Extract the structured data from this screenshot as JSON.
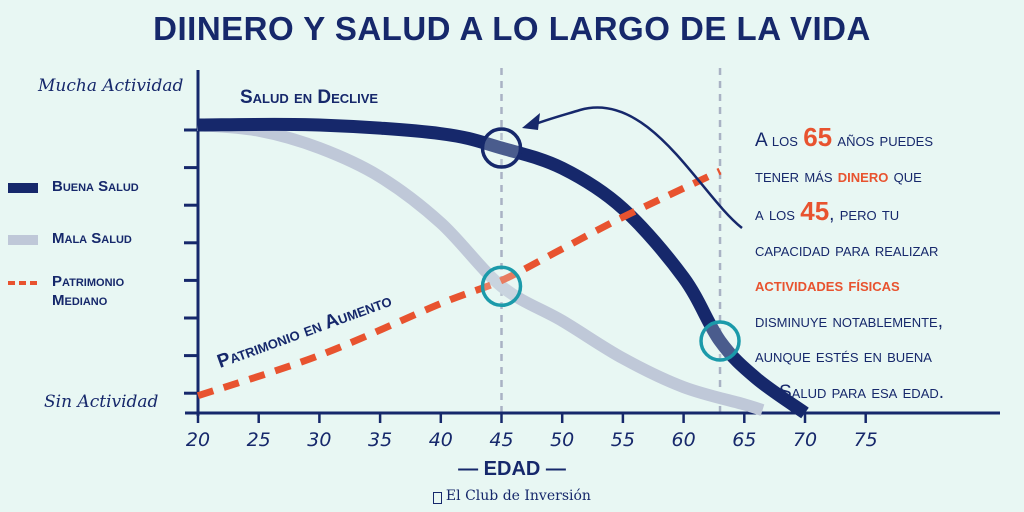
{
  "title": "DIINERO Y SALUD A LO LARGO DE LA VIDA",
  "colors": {
    "background": "#e8f7f3",
    "navy": "#16286b",
    "orange": "#e8532f",
    "grey": "#bfc8d8",
    "teal": "#1b9aaa",
    "guide": "#a9b2c4"
  },
  "chart_data": {
    "type": "line",
    "title": "DIINERO Y SALUD A LO LARGO DE LA VIDA",
    "xlabel": "EDAD",
    "ylabel_top": "Mucha Actividad",
    "ylabel_bottom": "Sin Actividad",
    "xlim": [
      20,
      75
    ],
    "xticks": [
      20,
      25,
      30,
      35,
      40,
      45,
      50,
      55,
      60,
      65,
      70,
      75
    ],
    "ylim": [
      0,
      100
    ],
    "grid": false,
    "legend_position": "left",
    "reference_lines_x": [
      45,
      63
    ],
    "series": [
      {
        "name": "Buena Salud",
        "style": "solid-thick",
        "color": "#16286b",
        "x": [
          20,
          30,
          40,
          45,
          50,
          55,
          60,
          63,
          66,
          70
        ],
        "y": [
          100,
          100,
          97,
          92,
          85,
          71,
          47,
          25,
          12,
          0
        ]
      },
      {
        "name": "Mala Salud",
        "style": "solid",
        "color": "#bfc8d8",
        "x": [
          20,
          25,
          30,
          35,
          40,
          45,
          50,
          55,
          60,
          65,
          66.5
        ],
        "y": [
          100,
          98,
          92,
          82,
          66,
          44,
          32,
          19,
          9,
          3,
          1
        ]
      },
      {
        "name": "Patrimonio Mediano",
        "style": "dashed",
        "color": "#e8532f",
        "x": [
          20,
          30,
          40,
          45,
          50,
          55,
          63
        ],
        "y": [
          6,
          20,
          38,
          46,
          57,
          68,
          84
        ]
      }
    ],
    "annotations": [
      {
        "text": "Salud en Declive"
      },
      {
        "text": "Patrimonio en Aumento"
      }
    ],
    "highlight_points": [
      {
        "series": "Buena Salud",
        "x": 45
      },
      {
        "series": "Mala Salud",
        "x": 45
      },
      {
        "series": "Buena Salud",
        "x": 63
      }
    ]
  },
  "legend": [
    {
      "label": "Buena Salud"
    },
    {
      "label": "Mala Salud"
    },
    {
      "label": "Patrimonio",
      "label2": "Mediano"
    }
  ],
  "note": {
    "l1a": "A los ",
    "n65": "65",
    "l1b": " años puedes",
    "l2a": "tener más ",
    "dinero": "dinero",
    "l2b": " que",
    "l3a": "a los ",
    "n45": "45",
    "l3b": ", pero tu",
    "l4": "capacidad para realizar",
    "l5": "actividades físicas",
    "l6": "disminuye notablemente,",
    "l7": "aunque estés en buena",
    "l8": "Salud para esa edad."
  },
  "brand": "El Club de Inversión"
}
